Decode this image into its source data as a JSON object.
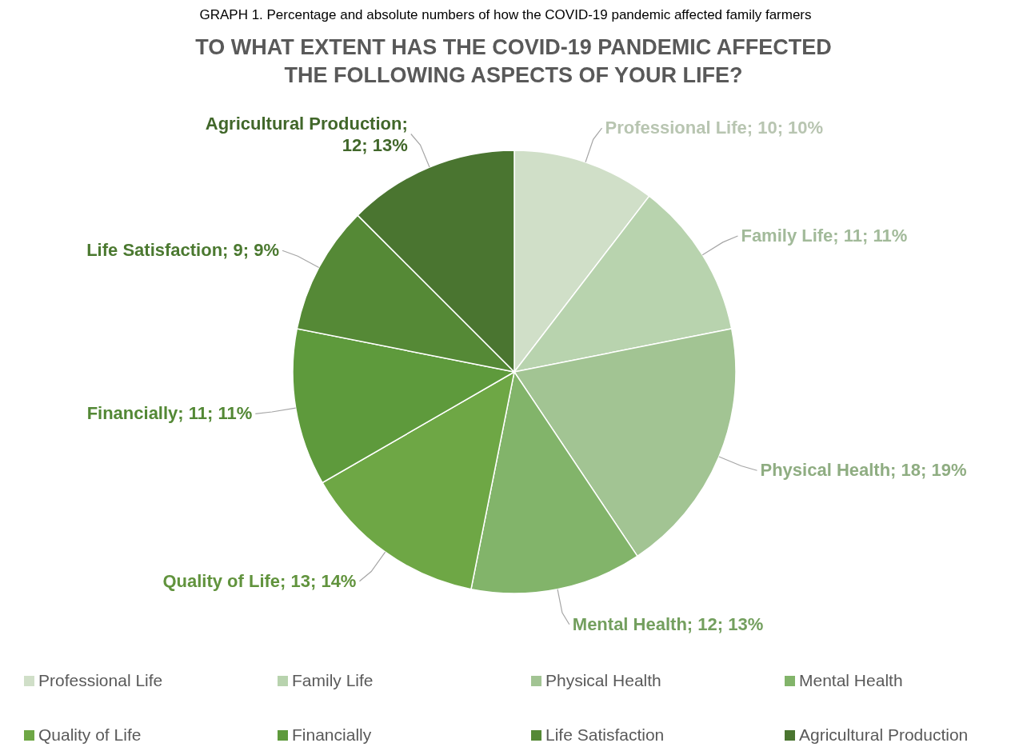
{
  "chart_data": {
    "type": "pie",
    "title": "TO WHAT EXTENT HAS THE COVID-19 PANDEMIC AFFECTED THE FOLLOWING ASPECTS OF YOUR LIFE?",
    "annotations": [
      "GRAPH 1. Percentage and absolute numbers of how the COVID-19 pandemic affected family farmers"
    ],
    "categories": [
      "Professional Life",
      "Family Life",
      "Physical Health",
      "Mental Health",
      "Quality of Life",
      "Financially",
      "Life Satisfaction",
      "Agricultural Production"
    ],
    "values": [
      10,
      11,
      18,
      12,
      13,
      11,
      9,
      12
    ],
    "value_labels": [
      "Professional Life; 10; 10%",
      "Family Life; 11; 11%",
      "Physical Health; 18; 19%",
      "Mental Health; 12; 13%",
      "Quality of Life; 13; 14%",
      "Financially; 11; 11%",
      "Life Satisfaction; 9; 9%",
      "Agricultural Production; 12; 13%"
    ],
    "colors": [
      "#d0dfc8",
      "#b8d3ae",
      "#a2c493",
      "#82b46a",
      "#6ea745",
      "#5e9a3c",
      "#558936",
      "#4a7530"
    ],
    "legend": "bottom"
  }
}
